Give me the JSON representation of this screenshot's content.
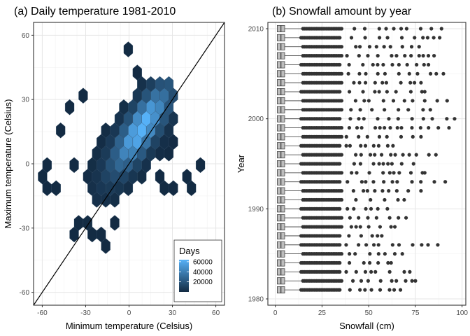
{
  "chart_data": [
    {
      "type": "hexbin",
      "title": "(a) Daily temperature 1981-2010",
      "xlabel": "Minimum temperature (Celsius)",
      "ylabel": "Maximum temperature (Celsius)",
      "xlim": [
        -66,
        66
      ],
      "ylim": [
        -66,
        66
      ],
      "xticks": [
        -60,
        -30,
        0,
        30,
        60
      ],
      "yticks": [
        -60,
        -30,
        0,
        30,
        60
      ],
      "grid": true,
      "reference_line": {
        "type": "identity",
        "slope": 1,
        "intercept": 0
      },
      "legend": {
        "title": "Days",
        "ticks": [
          60000,
          40000,
          20000
        ],
        "range": [
          1,
          64000
        ],
        "position": "bottom-right"
      },
      "colors": {
        "low": "#132B43",
        "high": "#56B1F7"
      },
      "bin_counts": [
        {
          "x": 0,
          "y": 5,
          "count": 20000
        },
        {
          "x": 5,
          "y": 10,
          "count": 30000
        },
        {
          "x": 10,
          "y": 16,
          "count": 45000
        },
        {
          "x": 15,
          "y": 22,
          "count": 55000
        },
        {
          "x": 18,
          "y": 26,
          "count": 60000
        },
        {
          "x": -10,
          "y": -3,
          "count": 15000
        },
        {
          "x": -20,
          "y": -12,
          "count": 8000
        }
      ]
    },
    {
      "type": "boxplot",
      "orientation": "horizontal",
      "title": "(b) Snowfall amount by year",
      "xlabel": "Snowfall (cm)",
      "ylabel": "Year",
      "xlim": [
        -4,
        102
      ],
      "ylim": [
        1979.3,
        2010.7
      ],
      "xticks": [
        0,
        25,
        50,
        75,
        100
      ],
      "yticks": [
        1980,
        1990,
        2000,
        2010
      ],
      "grid": true,
      "series": [
        {
          "year": 1981,
          "q1": 1,
          "median": 3,
          "q3": 5,
          "whisker_hi": 13,
          "max": 67
        },
        {
          "year": 1982,
          "q1": 1,
          "median": 3,
          "q3": 5,
          "whisker_hi": 14,
          "max": 75
        },
        {
          "year": 1983,
          "q1": 1,
          "median": 3,
          "q3": 5,
          "whisker_hi": 13,
          "max": 72
        },
        {
          "year": 1984,
          "q1": 1,
          "median": 3,
          "q3": 5,
          "whisker_hi": 13,
          "max": 62
        },
        {
          "year": 1985,
          "q1": 1,
          "median": 3,
          "q3": 5,
          "whisker_hi": 14,
          "max": 68
        },
        {
          "year": 1986,
          "q1": 1,
          "median": 3,
          "q3": 5,
          "whisker_hi": 13,
          "max": 87
        },
        {
          "year": 1987,
          "q1": 1,
          "median": 3,
          "q3": 5,
          "whisker_hi": 13,
          "max": 57
        },
        {
          "year": 1988,
          "q1": 1,
          "median": 3,
          "q3": 5,
          "whisker_hi": 14,
          "max": 64
        },
        {
          "year": 1989,
          "q1": 1,
          "median": 3,
          "q3": 5,
          "whisker_hi": 14,
          "max": 70
        },
        {
          "year": 1990,
          "q1": 1,
          "median": 3,
          "q3": 5,
          "whisker_hi": 13,
          "max": 60
        },
        {
          "year": 1991,
          "q1": 1,
          "median": 3,
          "q3": 5,
          "whisker_hi": 14,
          "max": 69
        },
        {
          "year": 1992,
          "q1": 1,
          "median": 3,
          "q3": 5,
          "whisker_hi": 14,
          "max": 78
        },
        {
          "year": 1993,
          "q1": 1,
          "median": 3,
          "q3": 5,
          "whisker_hi": 13,
          "max": 91
        },
        {
          "year": 1994,
          "q1": 1,
          "median": 3,
          "q3": 5,
          "whisker_hi": 14,
          "max": 80
        },
        {
          "year": 1995,
          "q1": 1,
          "median": 3,
          "q3": 5,
          "whisker_hi": 13,
          "max": 74
        },
        {
          "year": 1996,
          "q1": 1,
          "median": 3,
          "q3": 5,
          "whisker_hi": 14,
          "max": 86
        },
        {
          "year": 1997,
          "q1": 1,
          "median": 3,
          "q3": 5,
          "whisker_hi": 13,
          "max": 63
        },
        {
          "year": 1998,
          "q1": 1,
          "median": 3,
          "q3": 5,
          "whisker_hi": 14,
          "max": 78
        },
        {
          "year": 1999,
          "q1": 1,
          "median": 3,
          "q3": 5,
          "whisker_hi": 14,
          "max": 93
        },
        {
          "year": 2000,
          "q1": 1,
          "median": 3,
          "q3": 5,
          "whisker_hi": 13,
          "max": 96
        },
        {
          "year": 2001,
          "q1": 1,
          "median": 3,
          "q3": 5,
          "whisker_hi": 14,
          "max": 83
        },
        {
          "year": 2002,
          "q1": 1,
          "median": 3,
          "q3": 5,
          "whisker_hi": 14,
          "max": 92
        },
        {
          "year": 2003,
          "q1": 1,
          "median": 3,
          "q3": 5,
          "whisker_hi": 13,
          "max": 80
        },
        {
          "year": 2004,
          "q1": 1,
          "median": 3,
          "q3": 5,
          "whisker_hi": 14,
          "max": 78
        },
        {
          "year": 2005,
          "q1": 1,
          "median": 3,
          "q3": 5,
          "whisker_hi": 14,
          "max": 90
        },
        {
          "year": 2006,
          "q1": 1,
          "median": 3,
          "q3": 5,
          "whisker_hi": 13,
          "max": 82
        },
        {
          "year": 2007,
          "q1": 1,
          "median": 3,
          "q3": 5,
          "whisker_hi": 14,
          "max": 85
        },
        {
          "year": 2008,
          "q1": 1,
          "median": 3,
          "q3": 5,
          "whisker_hi": 14,
          "max": 77
        },
        {
          "year": 2009,
          "q1": 1,
          "median": 3,
          "q3": 5,
          "whisker_hi": 13,
          "max": 88
        },
        {
          "year": 2010,
          "q1": 1,
          "median": 3,
          "q3": 5,
          "whisker_hi": 14,
          "max": 89
        }
      ]
    }
  ]
}
